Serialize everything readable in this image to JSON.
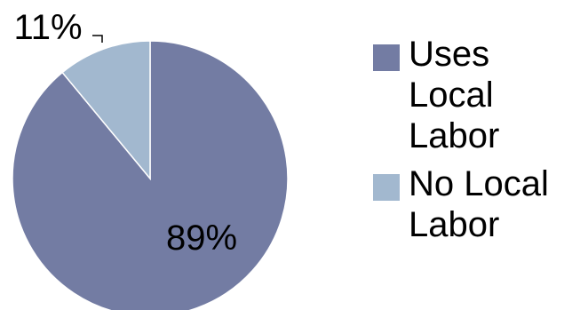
{
  "chart_data": {
    "type": "pie",
    "title": "",
    "slices": [
      {
        "label": "Uses Local Labor",
        "value": 89,
        "display": "89%",
        "color": "#737ca3"
      },
      {
        "label": "No Local Labor",
        "value": 11,
        "display": "11%",
        "color": "#a2b8cf"
      }
    ],
    "legend_position": "right"
  },
  "legend": {
    "items": [
      {
        "lines": [
          "Uses",
          "Local",
          "Labor"
        ],
        "color": "#737ca3"
      },
      {
        "lines": [
          "No Local",
          "Labor"
        ],
        "color": "#a2b8cf"
      }
    ]
  }
}
